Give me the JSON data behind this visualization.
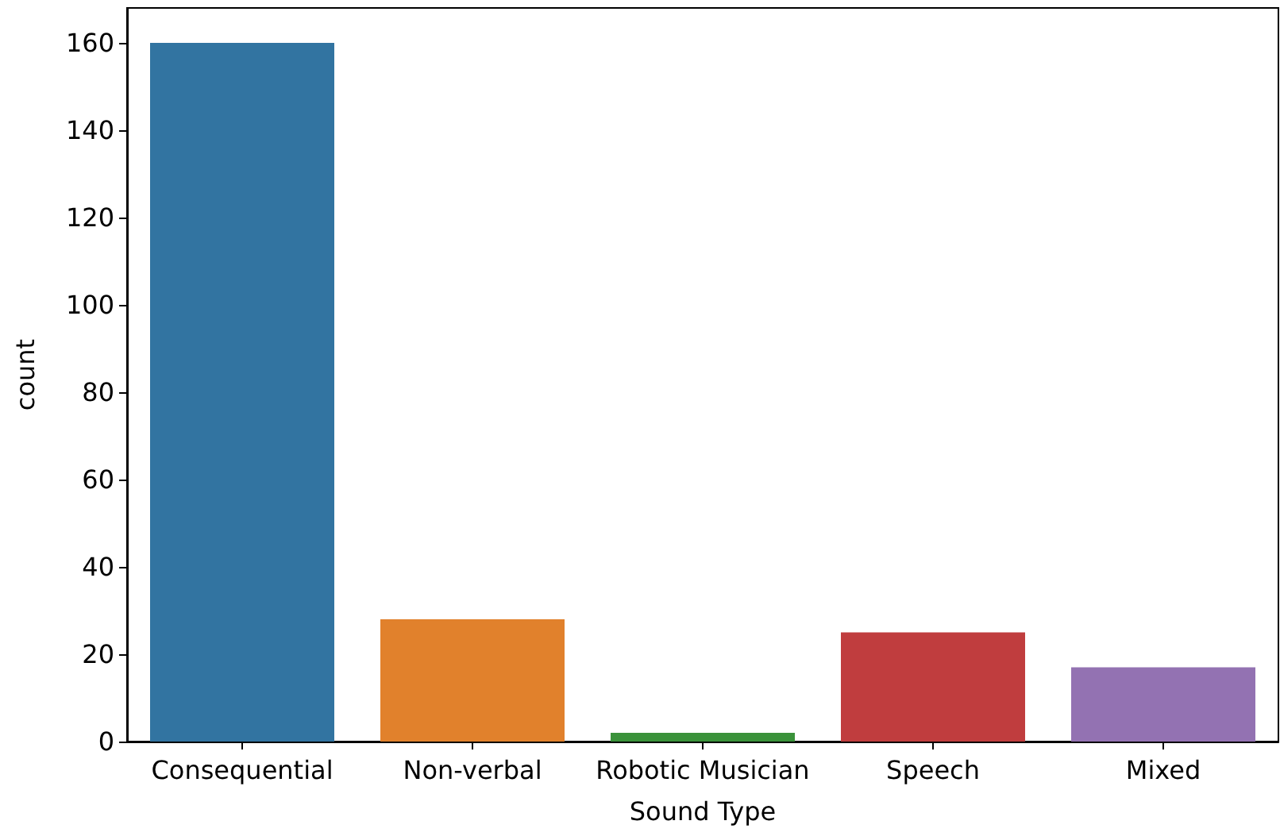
{
  "chart_data": {
    "type": "bar",
    "xlabel": "Sound Type",
    "ylabel": "count",
    "categories": [
      "Consequential",
      "Non-verbal",
      "Robotic Musician",
      "Speech",
      "Mixed"
    ],
    "values": [
      160,
      28,
      2,
      25,
      17
    ],
    "colors": [
      "#3274a1",
      "#e1812c",
      "#3a923a",
      "#c03d3e",
      "#9372b2"
    ],
    "ylim": [
      0,
      168
    ],
    "yticks": [
      0,
      20,
      40,
      60,
      80,
      100,
      120,
      140,
      160
    ],
    "grid": false
  }
}
